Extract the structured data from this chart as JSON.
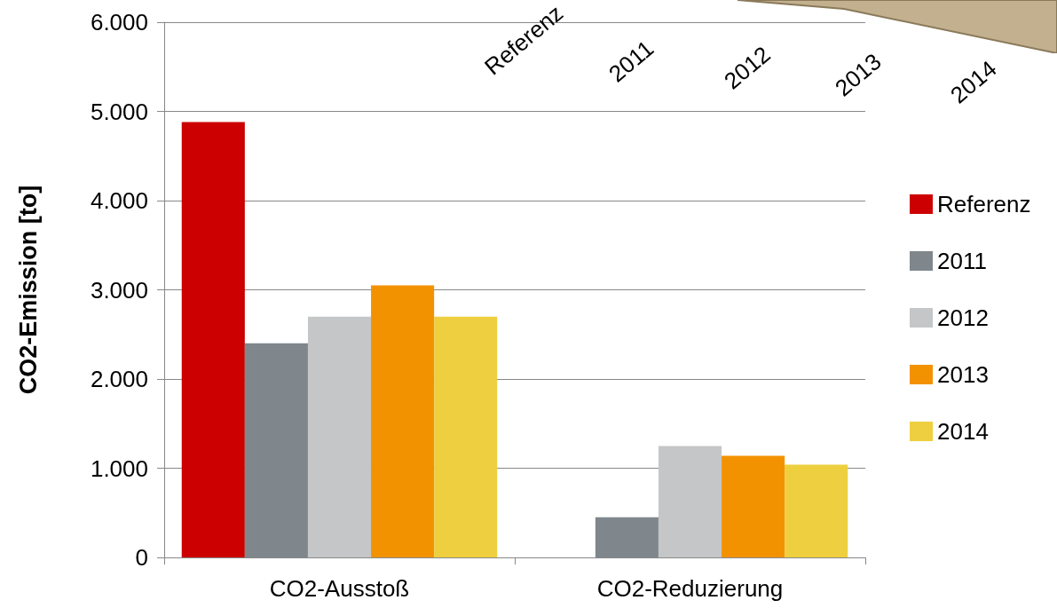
{
  "chart_data": [
    {
      "type": "bar",
      "ylabel": "CO2-Emission [to]",
      "categories": [
        "CO2-Ausstoß",
        "CO2-Reduzierung"
      ],
      "series": [
        {
          "name": "Referenz",
          "color": "#cc0000",
          "values": [
            4880,
            null
          ]
        },
        {
          "name": "2011",
          "color": "#7f878c",
          "values": [
            2400,
            450
          ]
        },
        {
          "name": "2012",
          "color": "#c4c6c8",
          "values": [
            2700,
            1250
          ]
        },
        {
          "name": "2013",
          "color": "#f39200",
          "values": [
            3050,
            1140
          ]
        },
        {
          "name": "2014",
          "color": "#eecf40",
          "values": [
            2700,
            1040
          ]
        }
      ],
      "ylim": [
        0,
        6000
      ],
      "yticks": [
        0,
        {
          "value": 1000,
          "label": "1.000"
        },
        {
          "value": 2000,
          "label": "2.000"
        },
        {
          "value": 3000,
          "label": "3.000"
        },
        {
          "value": 4000,
          "label": "4.000"
        },
        {
          "value": 5000,
          "label": "5.000"
        },
        {
          "value": 6000,
          "label": "6.000"
        }
      ],
      "grid": "y",
      "legend": "right"
    },
    {
      "type": "other",
      "annotations": [
        "Referenz",
        "2011",
        "2012",
        "2013",
        "2014"
      ]
    }
  ]
}
